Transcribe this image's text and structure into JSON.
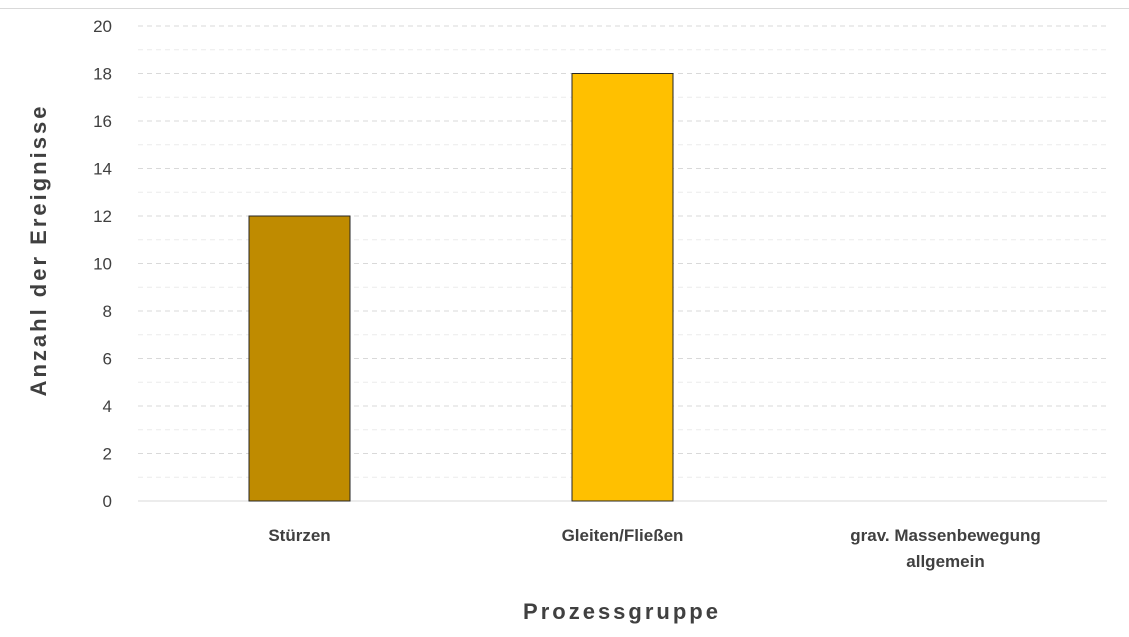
{
  "chart_data": {
    "type": "bar",
    "categories": [
      "Stürzen",
      "Gleiten/Fließen",
      "grav. Massenbewegung allgemein"
    ],
    "category_label_lines": [
      [
        "Stürzen"
      ],
      [
        "Gleiten/Fließen"
      ],
      [
        "grav. Massenbewegung",
        "allgemein"
      ]
    ],
    "values": [
      12,
      18,
      0
    ],
    "bar_colors": [
      "#bf8b00",
      "#ffc000",
      "#ffc000"
    ],
    "bar_edge_color": "#262626",
    "xlabel": "Prozessgruppe",
    "ylabel": "Anzahl der Ereignisse",
    "ylim": [
      0,
      20
    ],
    "yticks": [
      0,
      2,
      4,
      6,
      8,
      10,
      12,
      14,
      16,
      18,
      20
    ],
    "minor_gridlines": true,
    "grid": true,
    "grid_color": "#d9d9d9",
    "legend": "none"
  }
}
